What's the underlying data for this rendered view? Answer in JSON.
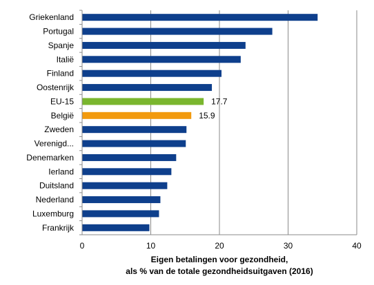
{
  "chart_data": {
    "type": "bar",
    "orientation": "horizontal",
    "categories": [
      "Griekenland",
      "Portugal",
      "Spanje",
      "Italië",
      "Finland",
      "Oostenrijk",
      "EU-15",
      "België",
      "Zweden",
      "Verenigd...",
      "Denemarken",
      "Ierland",
      "Duitsland",
      "Nederland",
      "Luxemburg",
      "Frankrijk"
    ],
    "values": [
      34.3,
      27.7,
      23.8,
      23.1,
      20.3,
      18.9,
      17.7,
      15.9,
      15.2,
      15.1,
      13.7,
      13.0,
      12.4,
      11.4,
      11.2,
      9.8
    ],
    "data_labels": {
      "EU-15": "17.7",
      "België": "15.9"
    },
    "colors": {
      "default": "#0e3f8c",
      "EU-15": "#7ab62e",
      "België": "#f29a0e",
      "gridline": "#8a8a8a",
      "axis": "#8a8a8a"
    },
    "xlim": [
      0,
      40
    ],
    "xticks": [
      0,
      10,
      20,
      30,
      40
    ],
    "xlabel_line1": "Eigen betalingen voor gezondheid,",
    "xlabel_line2": "als % van de totale gezondheidsuitgaven (2016)",
    "grid": "vertical",
    "legend": "none"
  }
}
